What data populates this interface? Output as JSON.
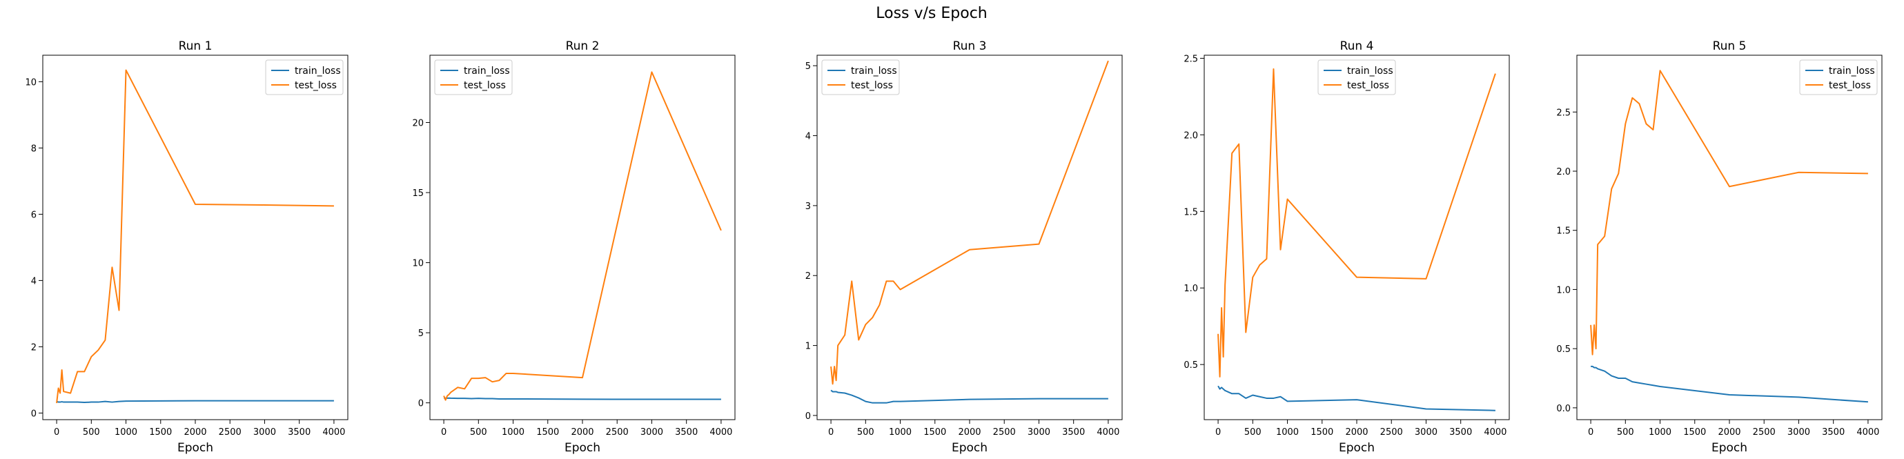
{
  "figure": {
    "title": "Loss v/s Epoch"
  },
  "colors": {
    "train_loss": "#1f77b4",
    "test_loss": "#ff7f0e"
  },
  "chart_data": [
    {
      "type": "line",
      "title": "Run 1",
      "xlabel": "Epoch",
      "ylabel": "",
      "legend_position": "top-right",
      "xlim": [
        -200,
        4200
      ],
      "ylim": [
        -0.2,
        10.8
      ],
      "xticks": [
        0,
        500,
        1000,
        1500,
        2000,
        2500,
        3000,
        3500,
        4000
      ],
      "yticks": [
        0,
        2,
        4,
        6,
        8,
        10
      ],
      "series": [
        {
          "name": "train_loss",
          "x": [
            0,
            25,
            50,
            75,
            100,
            200,
            300,
            400,
            500,
            600,
            700,
            800,
            900,
            1000,
            2000,
            3000,
            4000
          ],
          "y": [
            0.35,
            0.33,
            0.33,
            0.34,
            0.33,
            0.33,
            0.33,
            0.32,
            0.33,
            0.33,
            0.35,
            0.33,
            0.35,
            0.36,
            0.37,
            0.37,
            0.37
          ]
        },
        {
          "name": "test_loss",
          "x": [
            0,
            25,
            50,
            75,
            100,
            200,
            300,
            400,
            500,
            600,
            700,
            800,
            900,
            1000,
            2000,
            3000,
            4000
          ],
          "y": [
            0.3,
            0.75,
            0.6,
            1.3,
            0.65,
            0.6,
            1.25,
            1.25,
            1.7,
            1.9,
            2.2,
            4.4,
            3.1,
            10.35,
            6.3,
            6.28,
            6.25
          ]
        }
      ]
    },
    {
      "type": "line",
      "title": "Run 2",
      "xlabel": "Epoch",
      "ylabel": "",
      "legend_position": "top-left",
      "xlim": [
        -200,
        4200
      ],
      "ylim": [
        -1.2,
        24.8
      ],
      "xticks": [
        0,
        500,
        1000,
        1500,
        2000,
        2500,
        3000,
        3500,
        4000
      ],
      "yticks": [
        0,
        5,
        10,
        15,
        20
      ],
      "series": [
        {
          "name": "train_loss",
          "x": [
            0,
            25,
            50,
            75,
            100,
            200,
            300,
            400,
            500,
            600,
            700,
            800,
            900,
            1000,
            2000,
            3000,
            4000
          ],
          "y": [
            0.35,
            0.33,
            0.33,
            0.34,
            0.33,
            0.32,
            0.32,
            0.3,
            0.32,
            0.3,
            0.3,
            0.28,
            0.28,
            0.28,
            0.26,
            0.25,
            0.25
          ]
        },
        {
          "name": "test_loss",
          "x": [
            0,
            25,
            50,
            75,
            100,
            200,
            300,
            400,
            500,
            600,
            700,
            800,
            900,
            1000,
            2000,
            3000,
            4000
          ],
          "y": [
            0.5,
            0.2,
            0.5,
            0.6,
            0.75,
            1.1,
            1.0,
            1.75,
            1.75,
            1.8,
            1.5,
            1.6,
            2.1,
            2.1,
            1.8,
            23.6,
            12.3
          ]
        }
      ]
    },
    {
      "type": "line",
      "title": "Run 3",
      "xlabel": "Epoch",
      "ylabel": "",
      "legend_position": "top-left",
      "xlim": [
        -200,
        4200
      ],
      "ylim": [
        -0.06,
        5.15
      ],
      "xticks": [
        0,
        500,
        1000,
        1500,
        2000,
        2500,
        3000,
        3500,
        4000
      ],
      "yticks": [
        0,
        1,
        2,
        3,
        4,
        5
      ],
      "series": [
        {
          "name": "train_loss",
          "x": [
            0,
            25,
            50,
            75,
            100,
            200,
            300,
            400,
            500,
            600,
            700,
            800,
            900,
            1000,
            2000,
            3000,
            4000
          ],
          "y": [
            0.36,
            0.34,
            0.34,
            0.34,
            0.33,
            0.32,
            0.29,
            0.25,
            0.2,
            0.18,
            0.18,
            0.18,
            0.2,
            0.2,
            0.23,
            0.24,
            0.24
          ]
        },
        {
          "name": "test_loss",
          "x": [
            0,
            25,
            50,
            75,
            100,
            200,
            300,
            400,
            500,
            600,
            700,
            800,
            900,
            1000,
            2000,
            3000,
            4000
          ],
          "y": [
            0.7,
            0.45,
            0.7,
            0.5,
            1.0,
            1.15,
            1.92,
            1.08,
            1.3,
            1.4,
            1.58,
            1.92,
            1.92,
            1.8,
            2.37,
            2.45,
            5.07
          ]
        }
      ]
    },
    {
      "type": "line",
      "title": "Run 4",
      "xlabel": "Epoch",
      "ylabel": "",
      "legend_position": "top-center",
      "xlim": [
        -200,
        4200
      ],
      "ylim": [
        0.14,
        2.52
      ],
      "xticks": [
        0,
        500,
        1000,
        1500,
        2000,
        2500,
        3000,
        3500,
        4000
      ],
      "yticks": [
        0.5,
        1.0,
        1.5,
        2.0,
        2.5
      ],
      "series": [
        {
          "name": "train_loss",
          "x": [
            0,
            25,
            50,
            75,
            100,
            200,
            300,
            400,
            500,
            600,
            700,
            800,
            900,
            1000,
            2000,
            3000,
            4000
          ],
          "y": [
            0.36,
            0.34,
            0.35,
            0.34,
            0.33,
            0.31,
            0.31,
            0.28,
            0.3,
            0.29,
            0.28,
            0.28,
            0.29,
            0.26,
            0.27,
            0.21,
            0.2
          ]
        },
        {
          "name": "test_loss",
          "x": [
            0,
            25,
            50,
            75,
            100,
            200,
            300,
            400,
            500,
            600,
            700,
            800,
            900,
            1000,
            2000,
            3000,
            4000
          ],
          "y": [
            0.7,
            0.42,
            0.87,
            0.55,
            1.02,
            1.88,
            1.94,
            0.71,
            1.07,
            1.15,
            1.19,
            2.43,
            1.25,
            1.58,
            1.07,
            1.06,
            2.4
          ]
        }
      ]
    },
    {
      "type": "line",
      "title": "Run 5",
      "xlabel": "Epoch",
      "ylabel": "",
      "legend_position": "top-right",
      "xlim": [
        -200,
        4200
      ],
      "ylim": [
        -0.1,
        2.98
      ],
      "xticks": [
        0,
        500,
        1000,
        1500,
        2000,
        2500,
        3000,
        3500,
        4000
      ],
      "yticks": [
        0.0,
        0.5,
        1.0,
        1.5,
        2.0,
        2.5
      ],
      "series": [
        {
          "name": "train_loss",
          "x": [
            0,
            25,
            50,
            75,
            100,
            200,
            300,
            400,
            500,
            600,
            700,
            800,
            900,
            1000,
            2000,
            3000,
            4000
          ],
          "y": [
            0.35,
            0.35,
            0.34,
            0.34,
            0.33,
            0.31,
            0.27,
            0.25,
            0.25,
            0.22,
            0.21,
            0.2,
            0.19,
            0.18,
            0.11,
            0.09,
            0.05
          ]
        },
        {
          "name": "test_loss",
          "x": [
            0,
            25,
            50,
            75,
            100,
            200,
            300,
            400,
            500,
            600,
            700,
            800,
            900,
            1000,
            2000,
            3000,
            4000
          ],
          "y": [
            0.7,
            0.45,
            0.7,
            0.5,
            1.38,
            1.45,
            1.85,
            1.98,
            2.4,
            2.62,
            2.57,
            2.4,
            2.35,
            2.85,
            1.87,
            1.99,
            1.98
          ]
        }
      ]
    }
  ]
}
